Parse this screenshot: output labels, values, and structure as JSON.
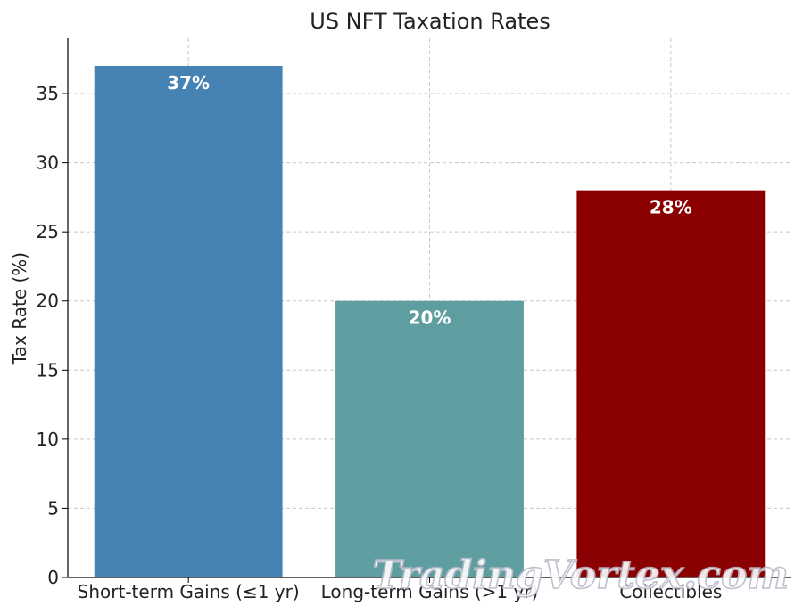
{
  "chart_data": {
    "type": "bar",
    "title": "US NFT Taxation Rates",
    "xlabel": "",
    "ylabel": "Tax Rate (%)",
    "categories": [
      "Short-term Gains (≤1 yr)",
      "Long-term Gains (>1 yr)",
      "Collectibles"
    ],
    "values": [
      37,
      20,
      28
    ],
    "data_labels": [
      "37%",
      "20%",
      "28%"
    ],
    "colors": [
      "#4682b4",
      "#5f9ea0",
      "#8b0000"
    ],
    "ylim": [
      0,
      39
    ],
    "yticks": [
      0,
      5,
      10,
      15,
      20,
      25,
      30,
      35
    ],
    "grid": true
  },
  "watermark": {
    "text": "TradingVortex.com"
  }
}
